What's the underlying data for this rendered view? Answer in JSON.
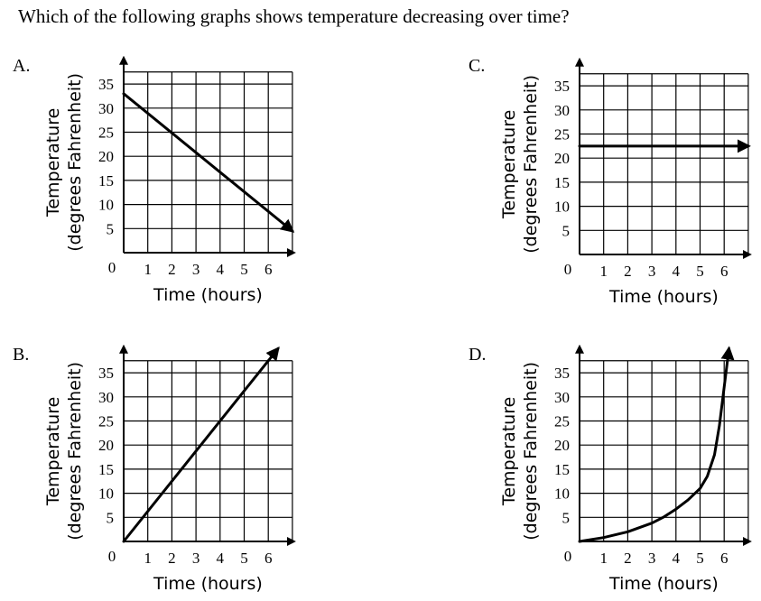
{
  "question": "Which of the following graphs shows temperature decreasing over time?",
  "chart_data": [
    {
      "option": "A.",
      "type": "line",
      "xlabel": "Time (hours)",
      "ylabel": [
        "Temperature",
        "(degrees Fahrenheit)"
      ],
      "x_ticks": [
        "1",
        "2",
        "3",
        "4",
        "5",
        "6"
      ],
      "y_ticks": [
        "5",
        "10",
        "15",
        "20",
        "25",
        "30",
        "35"
      ],
      "origin_label": "0",
      "xlim": [
        0,
        7
      ],
      "ylim": [
        0,
        37.5
      ],
      "arrow_end": true,
      "series": [
        {
          "x": [
            0,
            7
          ],
          "y": [
            33,
            4.5
          ]
        }
      ]
    },
    {
      "option": "B.",
      "type": "line",
      "xlabel": "Time (hours)",
      "ylabel": [
        "Temperature",
        "(degrees Fahrenheit)"
      ],
      "x_ticks": [
        "1",
        "2",
        "3",
        "4",
        "5",
        "6"
      ],
      "y_ticks": [
        "5",
        "10",
        "15",
        "20",
        "25",
        "30",
        "35"
      ],
      "origin_label": "0",
      "xlim": [
        0,
        7
      ],
      "ylim": [
        0,
        37.5
      ],
      "arrow_end": true,
      "series": [
        {
          "x": [
            0,
            6.4
          ],
          "y": [
            0,
            40
          ]
        }
      ]
    },
    {
      "option": "C.",
      "type": "line",
      "xlabel": "Time (hours)",
      "ylabel": [
        "Temperature",
        "(degrees Fahrenheit)"
      ],
      "x_ticks": [
        "1",
        "2",
        "3",
        "4",
        "5",
        "6"
      ],
      "y_ticks": [
        "5",
        "10",
        "15",
        "20",
        "25",
        "30",
        "35"
      ],
      "origin_label": "0",
      "xlim": [
        0,
        7
      ],
      "ylim": [
        0,
        37.5
      ],
      "arrow_end": true,
      "series": [
        {
          "x": [
            0,
            7
          ],
          "y": [
            22.5,
            22.5
          ]
        }
      ]
    },
    {
      "option": "D.",
      "type": "line",
      "xlabel": "Time (hours)",
      "ylabel": [
        "Temperature",
        "(degrees Fahrenheit)"
      ],
      "x_ticks": [
        "1",
        "2",
        "3",
        "4",
        "5",
        "6"
      ],
      "y_ticks": [
        "5",
        "10",
        "15",
        "20",
        "25",
        "30",
        "35"
      ],
      "origin_label": "0",
      "xlim": [
        0,
        7
      ],
      "ylim": [
        0,
        37.5
      ],
      "arrow_end": true,
      "series": [
        {
          "x": [
            0,
            1,
            2,
            3,
            3.5,
            4,
            4.5,
            5,
            5.3,
            5.6,
            5.8,
            6,
            6.2
          ],
          "y": [
            0,
            0.8,
            2,
            3.8,
            5.1,
            6.7,
            8.6,
            11,
            13.5,
            18,
            24,
            32,
            40
          ]
        }
      ]
    }
  ]
}
